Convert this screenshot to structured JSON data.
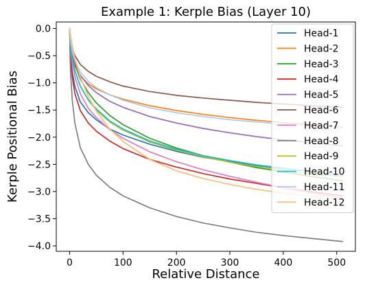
{
  "chart_data": {
    "type": "line",
    "title": "Example 1: Kerple Bias (Layer 10)",
    "xlabel": "Relative Distance",
    "ylabel": "Kerple Positional Bias",
    "xlim": [
      -25,
      535
    ],
    "ylim": [
      -4.1,
      0.12
    ],
    "xticks": [
      0,
      100,
      200,
      300,
      400,
      500
    ],
    "yticks": [
      0.0,
      -0.5,
      -1.0,
      -1.5,
      -2.0,
      -2.5,
      -3.0,
      -3.5,
      -4.0
    ],
    "xtick_labels": [
      "0",
      "100",
      "200",
      "300",
      "400",
      "500"
    ],
    "ytick_labels": [
      "0.0",
      "−0.5",
      "−1.0",
      "−1.5",
      "−2.0",
      "−2.5",
      "−3.0",
      "−3.5",
      "−4.0"
    ],
    "grid": false,
    "legend_position": "top-right",
    "x": [
      0,
      1,
      2,
      5,
      10,
      20,
      35,
      50,
      75,
      100,
      150,
      200,
      250,
      300,
      350,
      400,
      450,
      511
    ],
    "series": [
      {
        "name": "Head-1",
        "color": "#1f77b4",
        "values": [
          0,
          -0.34,
          -0.51,
          -0.8,
          -1.07,
          -1.35,
          -1.55,
          -1.68,
          -1.85,
          -1.96,
          -2.13,
          -2.26,
          -2.37,
          -2.45,
          -2.52,
          -2.58,
          -2.63,
          -2.7
        ]
      },
      {
        "name": "Head-2",
        "color": "#ff7f0e",
        "values": [
          0,
          -0.22,
          -0.33,
          -0.52,
          -0.7,
          -0.88,
          -1.02,
          -1.11,
          -1.22,
          -1.3,
          -1.42,
          -1.51,
          -1.58,
          -1.64,
          -1.69,
          -1.73,
          -1.77,
          -1.82
        ]
      },
      {
        "name": "Head-3",
        "color": "#2ca02c",
        "values": [
          0,
          -0.15,
          -0.25,
          -0.45,
          -0.66,
          -0.93,
          -1.18,
          -1.37,
          -1.6,
          -1.77,
          -2.02,
          -2.2,
          -2.34,
          -2.46,
          -2.56,
          -2.64,
          -2.72,
          -2.8
        ]
      },
      {
        "name": "Head-4",
        "color": "#d62728",
        "values": [
          0,
          -0.38,
          -0.57,
          -0.9,
          -1.2,
          -1.51,
          -1.74,
          -1.89,
          -2.07,
          -2.21,
          -2.41,
          -2.55,
          -2.67,
          -2.77,
          -2.85,
          -2.93,
          -3.0,
          -3.08
        ]
      },
      {
        "name": "Head-5",
        "color": "#9467bd",
        "values": [
          0,
          -0.18,
          -0.28,
          -0.46,
          -0.64,
          -0.86,
          -1.05,
          -1.18,
          -1.34,
          -1.45,
          -1.62,
          -1.74,
          -1.84,
          -1.92,
          -1.99,
          -2.05,
          -2.1,
          -2.16
        ]
      },
      {
        "name": "Head-6",
        "color": "#8c564b",
        "values": [
          0,
          -0.14,
          -0.22,
          -0.36,
          -0.5,
          -0.66,
          -0.79,
          -0.88,
          -0.98,
          -1.06,
          -1.16,
          -1.23,
          -1.28,
          -1.32,
          -1.36,
          -1.39,
          -1.42,
          -1.45
        ]
      },
      {
        "name": "Head-7",
        "color": "#e377c2",
        "values": [
          0,
          -0.23,
          -0.37,
          -0.62,
          -0.89,
          -1.2,
          -1.47,
          -1.64,
          -1.86,
          -2.02,
          -2.27,
          -2.45,
          -2.6,
          -2.72,
          -2.83,
          -2.93,
          -3.02,
          -3.12
        ]
      },
      {
        "name": "Head-8",
        "color": "#7f7f7f",
        "values": [
          0,
          -0.55,
          -0.85,
          -1.32,
          -1.75,
          -2.19,
          -2.5,
          -2.7,
          -2.92,
          -3.08,
          -3.3,
          -3.46,
          -3.58,
          -3.67,
          -3.75,
          -3.81,
          -3.86,
          -3.92
        ]
      },
      {
        "name": "Head-9",
        "color": "#bcbd22",
        "values": [
          0,
          -0.2,
          -0.32,
          -0.55,
          -0.78,
          -1.06,
          -1.32,
          -1.5,
          -1.72,
          -1.87,
          -2.09,
          -2.24,
          -2.36,
          -2.46,
          -2.54,
          -2.61,
          -2.67,
          -2.73
        ]
      },
      {
        "name": "Head-10",
        "color": "#17becf",
        "values": [
          0,
          -0.2,
          -0.32,
          -0.55,
          -0.78,
          -1.06,
          -1.31,
          -1.48,
          -1.7,
          -1.85,
          -2.07,
          -2.22,
          -2.34,
          -2.43,
          -2.51,
          -2.57,
          -2.63,
          -2.69
        ]
      },
      {
        "name": "Head-11",
        "color": "#aec7e8",
        "values": [
          0,
          -0.16,
          -0.25,
          -0.42,
          -0.59,
          -0.8,
          -0.97,
          -1.09,
          -1.22,
          -1.32,
          -1.46,
          -1.55,
          -1.62,
          -1.68,
          -1.72,
          -1.76,
          -1.79,
          -1.83
        ]
      },
      {
        "name": "Head-12",
        "color": "#ffbb78",
        "values": [
          0,
          -0.07,
          -0.14,
          -0.32,
          -0.55,
          -0.9,
          -1.25,
          -1.52,
          -1.85,
          -2.08,
          -2.41,
          -2.62,
          -2.76,
          -2.87,
          -2.96,
          -3.03,
          -3.09,
          -3.14
        ]
      }
    ]
  }
}
